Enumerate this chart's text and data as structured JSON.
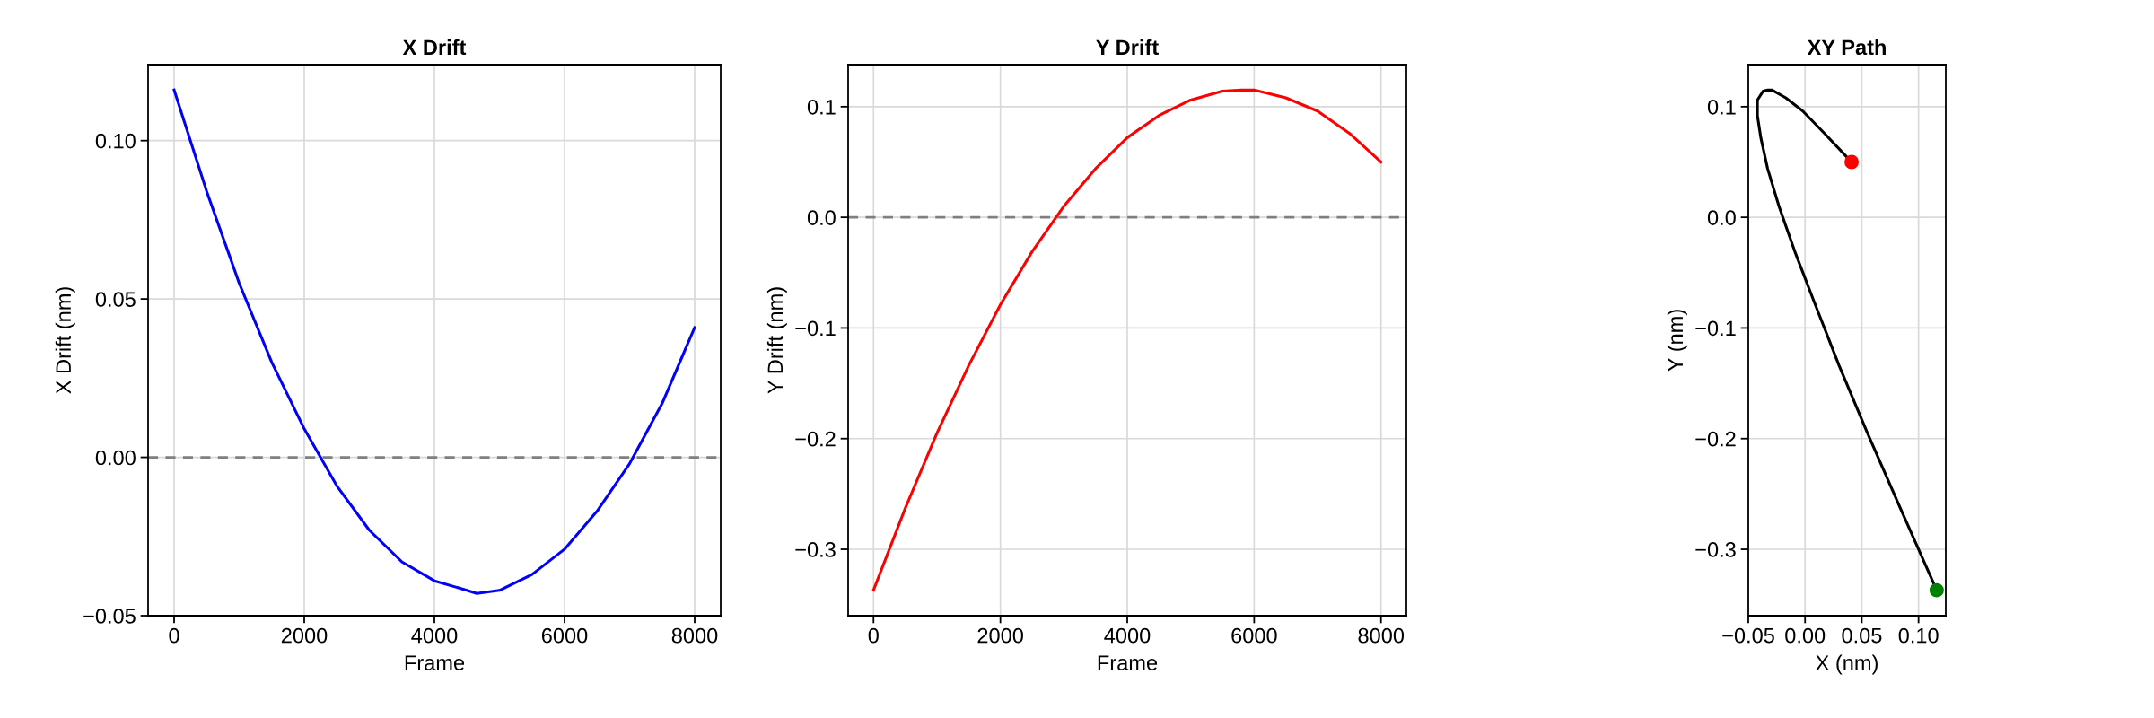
{
  "chart_data": [
    {
      "type": "line",
      "title": "X Drift",
      "xlabel": "Frame",
      "ylabel": "X Drift (nm)",
      "x": [
        0,
        500,
        1000,
        1500,
        2000,
        2500,
        3000,
        3500,
        4000,
        4500,
        4650,
        5000,
        5500,
        6000,
        6500,
        7000,
        7500,
        8000
      ],
      "series": [
        {
          "color": "#0000ff",
          "values": [
            0.116,
            0.084,
            0.055,
            0.03,
            0.009,
            -0.009,
            -0.023,
            -0.033,
            -0.039,
            -0.042,
            -0.043,
            -0.042,
            -0.037,
            -0.029,
            -0.017,
            -0.002,
            0.017,
            0.041
          ]
        }
      ],
      "xlim": [
        -400,
        8400
      ],
      "xticks": [
        0,
        2000,
        4000,
        6000,
        8000
      ],
      "ylim": [
        -0.05,
        0.124
      ],
      "yticks": [
        {
          "value": -0.05,
          "label": "−0.05"
        },
        {
          "value": 0,
          "label": "0.00"
        },
        {
          "value": 0.05,
          "label": "0.05"
        },
        {
          "value": 0.1,
          "label": "0.10"
        }
      ],
      "ref_lines": [
        {
          "axis": "y",
          "value": 0,
          "color": "#808080",
          "line_style": "dashed"
        }
      ],
      "grid": true,
      "marker": "none",
      "line_style": "solid"
    },
    {
      "type": "line",
      "title": "Y Drift",
      "xlabel": "Frame",
      "ylabel": "Y Drift (nm)",
      "x": [
        0,
        500,
        1000,
        1500,
        2000,
        2500,
        3000,
        3500,
        4000,
        4500,
        5000,
        5500,
        5800,
        6000,
        6500,
        7000,
        7500,
        8000
      ],
      "series": [
        {
          "color": "#ff0000",
          "values": [
            -0.337,
            -0.263,
            -0.195,
            -0.134,
            -0.079,
            -0.031,
            0.01,
            0.044,
            0.072,
            0.092,
            0.106,
            0.114,
            0.115,
            0.115,
            0.108,
            0.096,
            0.076,
            0.05
          ]
        }
      ],
      "xlim": [
        -400,
        8400
      ],
      "xticks": [
        0,
        2000,
        4000,
        6000,
        8000
      ],
      "ylim": [
        -0.36,
        0.138
      ],
      "yticks": [
        {
          "value": -0.3,
          "label": "−0.3"
        },
        {
          "value": -0.2,
          "label": "−0.2"
        },
        {
          "value": -0.1,
          "label": "−0.1"
        },
        {
          "value": 0,
          "label": "0.0"
        },
        {
          "value": 0.1,
          "label": "0.1"
        }
      ],
      "ref_lines": [
        {
          "axis": "y",
          "value": 0,
          "color": "#808080",
          "line_style": "dashed"
        }
      ],
      "grid": true,
      "marker": "none",
      "line_style": "solid"
    },
    {
      "type": "line",
      "title": "XY Path",
      "xlabel": "X (nm)",
      "ylabel": "Y (nm)",
      "series": [
        {
          "color": "#000000",
          "marker": "none",
          "x": [
            0.116,
            0.084,
            0.055,
            0.03,
            0.009,
            -0.009,
            -0.023,
            -0.033,
            -0.039,
            -0.042,
            -0.042,
            -0.037,
            -0.033,
            -0.029,
            -0.017,
            -0.002,
            0.017,
            0.041
          ],
          "values": [
            -0.337,
            -0.263,
            -0.195,
            -0.134,
            -0.079,
            -0.031,
            0.01,
            0.044,
            0.072,
            0.092,
            0.106,
            0.114,
            0.115,
            0.115,
            0.108,
            0.096,
            0.076,
            0.05
          ]
        },
        {
          "type": "scatter",
          "color": "#008000",
          "marker": "circle",
          "x": [
            0.116
          ],
          "values": [
            -0.337
          ]
        },
        {
          "type": "scatter",
          "color": "#ff0000",
          "marker": "circle",
          "x": [
            0.041
          ],
          "values": [
            0.05
          ]
        }
      ],
      "xlim": [
        -0.05,
        0.124
      ],
      "xticks": [
        {
          "value": -0.05,
          "label": "−0.05"
        },
        {
          "value": 0,
          "label": "0.00"
        },
        {
          "value": 0.05,
          "label": "0.05"
        },
        {
          "value": 0.1,
          "label": "0.10"
        }
      ],
      "ylim": [
        -0.36,
        0.138
      ],
      "yticks": [
        {
          "value": -0.3,
          "label": "−0.3"
        },
        {
          "value": -0.2,
          "label": "−0.2"
        },
        {
          "value": -0.1,
          "label": "−0.1"
        },
        {
          "value": 0,
          "label": "0.0"
        },
        {
          "value": 0.1,
          "label": "0.1"
        }
      ],
      "grid": true,
      "line_style": "solid"
    }
  ]
}
